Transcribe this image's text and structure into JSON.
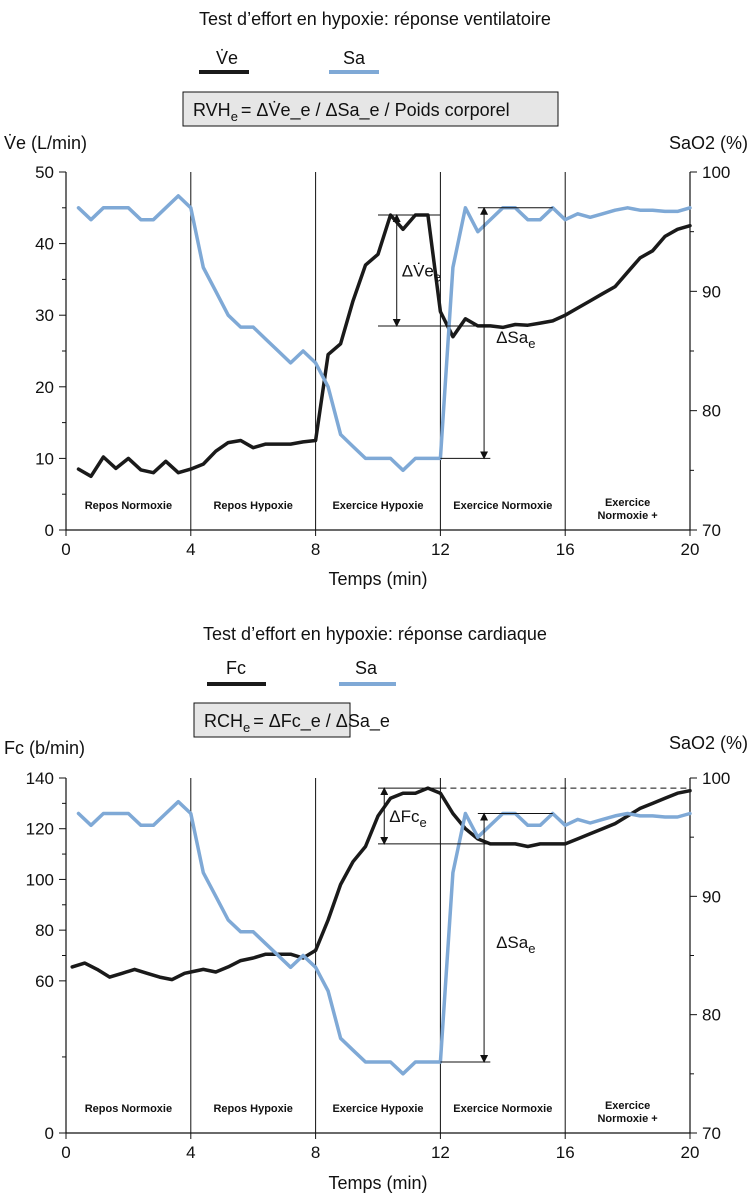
{
  "colors": {
    "primary_series": "#1a1a1a",
    "sa_series": "#7fa9d6",
    "formula_box_fill": "#e6e6e6"
  },
  "chart_data": [
    {
      "type": "line",
      "title": "Test d’effort en hypoxie: réponse ventilatoire",
      "legend": {
        "position": "top",
        "items": [
          {
            "label": "V̇e",
            "color": "#1a1a1a"
          },
          {
            "label": "Sa",
            "color": "#7fa9d6"
          }
        ]
      },
      "formula": {
        "lhs": "RVH",
        "lhs_sub": "e",
        "rhs": "= ΔV̇e_e / ΔSa_e / Poids corporel"
      },
      "xlabel": "Temps (min)",
      "xlim": [
        0,
        20
      ],
      "xticks": [
        "0",
        "4",
        "8",
        "12",
        "16",
        "20"
      ],
      "ylabel": "V̇e (L/min)",
      "ylim": [
        0,
        50
      ],
      "yticks": [
        "0",
        "10",
        "20",
        "30",
        "40",
        "50"
      ],
      "y2label": "SaO2 (%)",
      "y2lim": [
        70,
        100
      ],
      "y2ticks": [
        "70",
        "80",
        "90",
        "100"
      ],
      "phase_boundaries": [
        4,
        8,
        12,
        16
      ],
      "phases": [
        "Repos Normoxie",
        "Repos Hypoxie",
        "Exercice Hypoxie",
        "Exercice Normoxie",
        "Exercice Normoxie +"
      ],
      "annotations": {
        "delta_primary": "ΔV̇e_e",
        "delta_sa": "ΔSa_e"
      },
      "series": [
        {
          "name": "V̇e",
          "axis": "left",
          "x": [
            0.4,
            0.8,
            1.2,
            1.6,
            2.0,
            2.4,
            2.8,
            3.2,
            3.6,
            4.0,
            4.4,
            4.8,
            5.2,
            5.6,
            6.0,
            6.4,
            6.8,
            7.2,
            7.6,
            8.0,
            8.4,
            8.8,
            9.2,
            9.6,
            10.0,
            10.4,
            10.8,
            11.2,
            11.6,
            12.0,
            12.4,
            12.8,
            13.2,
            13.6,
            14.0,
            14.4,
            14.8,
            15.2,
            15.6,
            16.0,
            16.4,
            16.8,
            17.2,
            17.6,
            18.0,
            18.4,
            18.8,
            19.2,
            19.6,
            20.0
          ],
          "values": [
            8.5,
            7.5,
            10.2,
            8.6,
            10,
            8.4,
            8,
            9.6,
            8,
            8.5,
            9.2,
            11,
            12.2,
            12.5,
            11.5,
            12,
            12,
            12,
            12.3,
            12.5,
            24.5,
            26,
            32,
            37,
            38.5,
            44,
            42,
            44,
            44,
            30.5,
            27,
            29.5,
            28.5,
            28.5,
            28.3,
            28.7,
            28.6,
            28.9,
            29.2,
            30,
            31,
            32,
            33,
            34,
            36,
            38,
            39,
            41,
            42,
            42.5
          ]
        },
        {
          "name": "Sa",
          "axis": "right",
          "x": [
            0.4,
            0.8,
            1.2,
            1.6,
            2.0,
            2.4,
            2.8,
            3.2,
            3.6,
            4.0,
            4.4,
            4.8,
            5.2,
            5.6,
            6.0,
            6.4,
            6.8,
            7.2,
            7.6,
            8.0,
            8.4,
            8.8,
            9.2,
            9.6,
            10.0,
            10.4,
            10.8,
            11.2,
            11.6,
            12.0,
            12.4,
            12.8,
            13.2,
            13.6,
            14.0,
            14.4,
            14.8,
            15.2,
            15.6,
            16.0,
            16.4,
            16.8,
            17.2,
            17.6,
            18.0,
            18.4,
            18.8,
            19.2,
            19.6,
            20.0
          ],
          "values": [
            97,
            96,
            97,
            97,
            97,
            96,
            96,
            97,
            98,
            97,
            92,
            90,
            88,
            87,
            87,
            86,
            85,
            84,
            85,
            84,
            82,
            78,
            77,
            76,
            76,
            76,
            75,
            76,
            76,
            76,
            92,
            97,
            95,
            96,
            97,
            97,
            96,
            96,
            97,
            96,
            96.5,
            96.2,
            96.5,
            96.8,
            97,
            96.8,
            96.8,
            96.7,
            96.7,
            97
          ]
        }
      ]
    },
    {
      "type": "line",
      "title": "Test d’effort en hypoxie: réponse cardiaque",
      "legend": {
        "position": "top",
        "items": [
          {
            "label": "Fc",
            "color": "#1a1a1a"
          },
          {
            "label": "Sa",
            "color": "#7fa9d6"
          }
        ]
      },
      "formula": {
        "lhs": "RCH",
        "lhs_sub": "e",
        "rhs": "= ΔFc_e / ΔSa_e"
      },
      "xlabel": "Temps (min)",
      "xlim": [
        0,
        20
      ],
      "xticks": [
        "0",
        "4",
        "8",
        "12",
        "16",
        "20"
      ],
      "ylabel": "Fc (b/min)",
      "ylim": [
        0,
        140
      ],
      "yticks": [
        "0",
        "60",
        "80",
        "100",
        "120",
        "140"
      ],
      "y2label": "SaO2 (%)",
      "y2lim": [
        70,
        100
      ],
      "y2ticks": [
        "70",
        "80",
        "90",
        "100"
      ],
      "phase_boundaries": [
        4,
        8,
        12,
        16
      ],
      "phases": [
        "Repos Normoxie",
        "Repos Hypoxie",
        "Exercice Hypoxie",
        "Exercice Normoxie",
        "Exercice Normoxie +"
      ],
      "annotations": {
        "delta_primary": "ΔFc_e",
        "delta_sa": "ΔSa_e"
      },
      "series": [
        {
          "name": "Fc",
          "axis": "left",
          "x": [
            0.2,
            0.6,
            1.0,
            1.4,
            1.8,
            2.2,
            2.6,
            3.0,
            3.4,
            3.8,
            4.0,
            4.4,
            4.8,
            5.2,
            5.6,
            6.0,
            6.4,
            6.8,
            7.2,
            7.6,
            8.0,
            8.4,
            8.8,
            9.2,
            9.6,
            10.0,
            10.4,
            10.8,
            11.2,
            11.6,
            12.0,
            12.4,
            12.8,
            13.2,
            13.6,
            14.0,
            14.4,
            14.8,
            15.2,
            15.6,
            16.0,
            16.4,
            16.8,
            17.2,
            17.6,
            18.0,
            18.4,
            18.8,
            19.2,
            19.6,
            20.0
          ],
          "values": [
            65.5,
            67,
            64.5,
            61.5,
            63,
            64.5,
            63,
            61.5,
            60.5,
            63,
            63.5,
            64.5,
            63.5,
            65.5,
            68,
            69,
            70.5,
            70.5,
            70.5,
            69,
            72,
            84,
            98,
            107,
            113,
            125,
            132,
            134,
            134,
            136,
            134,
            126,
            120,
            116,
            114,
            114,
            114,
            113,
            114,
            114,
            114,
            116,
            118,
            120,
            122,
            125,
            128,
            130,
            132,
            134,
            135
          ]
        },
        {
          "name": "Sa",
          "axis": "right",
          "x": [
            0.4,
            0.8,
            1.2,
            1.6,
            2.0,
            2.4,
            2.8,
            3.2,
            3.6,
            4.0,
            4.4,
            4.8,
            5.2,
            5.6,
            6.0,
            6.4,
            6.8,
            7.2,
            7.6,
            8.0,
            8.4,
            8.8,
            9.2,
            9.6,
            10.0,
            10.4,
            10.8,
            11.2,
            11.6,
            12.0,
            12.4,
            12.8,
            13.2,
            13.6,
            14.0,
            14.4,
            14.8,
            15.2,
            15.6,
            16.0,
            16.4,
            16.8,
            17.2,
            17.6,
            18.0,
            18.4,
            18.8,
            19.2,
            19.6,
            20.0
          ],
          "values": [
            97,
            96,
            97,
            97,
            97,
            96,
            96,
            97,
            98,
            97,
            92,
            90,
            88,
            87,
            87,
            86,
            85,
            84,
            85,
            84,
            82,
            78,
            77,
            76,
            76,
            76,
            75,
            76,
            76,
            76,
            92,
            97,
            95,
            96,
            97,
            97,
            96,
            96,
            97,
            96,
            96.5,
            96.2,
            96.5,
            96.8,
            97,
            96.8,
            96.8,
            96.7,
            96.7,
            97
          ]
        }
      ]
    }
  ]
}
